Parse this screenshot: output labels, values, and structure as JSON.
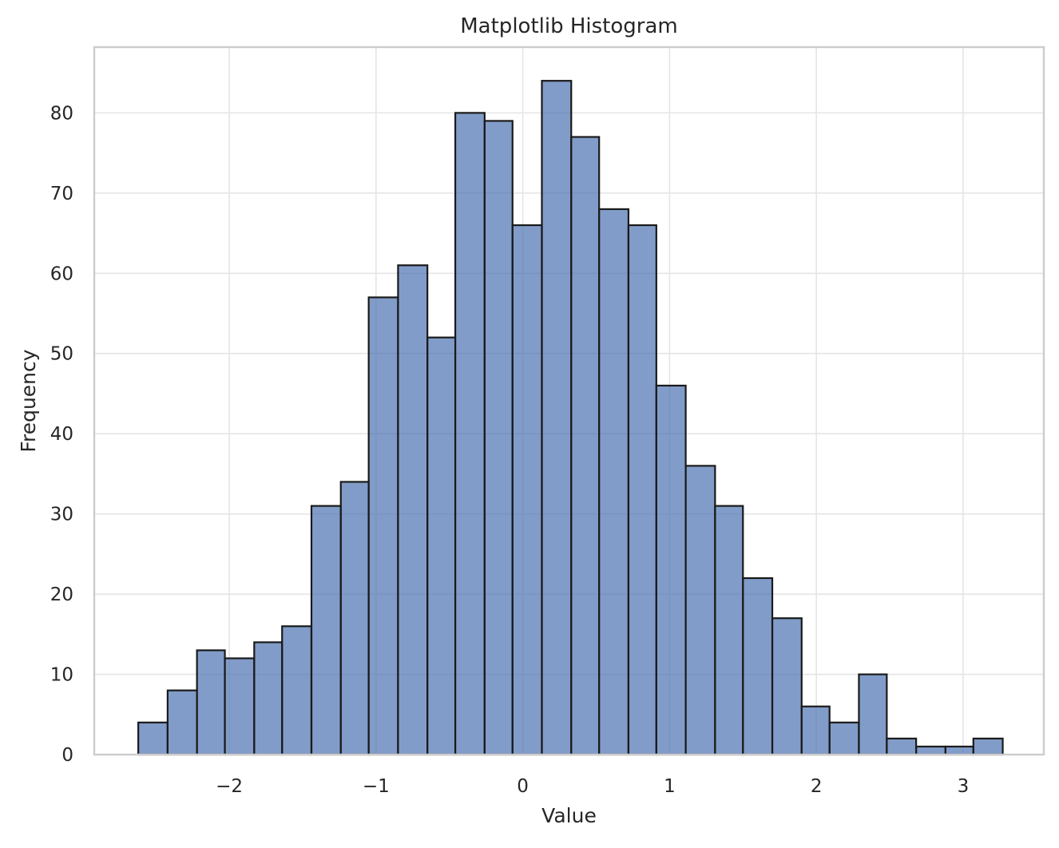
{
  "chart_data": {
    "type": "bar",
    "subtype": "histogram",
    "title": "Matplotlib Histogram",
    "xlabel": "Value",
    "ylabel": "Frequency",
    "bin_edges": [
      -2.62,
      -2.42,
      -2.22,
      -2.03,
      -1.83,
      -1.64,
      -1.44,
      -1.24,
      -1.05,
      -0.85,
      -0.65,
      -0.46,
      -0.26,
      -0.07,
      0.13,
      0.33,
      0.52,
      0.72,
      0.91,
      1.11,
      1.31,
      1.5,
      1.7,
      1.9,
      2.09,
      2.29,
      2.48,
      2.68,
      2.88,
      3.07,
      3.27
    ],
    "values": [
      4,
      8,
      13,
      12,
      14,
      16,
      31,
      34,
      57,
      61,
      52,
      80,
      79,
      66,
      84,
      77,
      68,
      66,
      46,
      36,
      31,
      22,
      17,
      6,
      4,
      10,
      2,
      1,
      1,
      2
    ],
    "xlim": [
      -2.92,
      3.55
    ],
    "ylim": [
      0,
      88.2
    ],
    "xticks": [
      -2,
      -1,
      0,
      1,
      2,
      3
    ],
    "xtick_labels": [
      "−2",
      "−1",
      "0",
      "1",
      "2",
      "3"
    ],
    "yticks": [
      0,
      10,
      20,
      30,
      40,
      50,
      60,
      70,
      80
    ],
    "ytick_labels": [
      "0",
      "10",
      "20",
      "30",
      "40",
      "50",
      "60",
      "70",
      "80"
    ],
    "grid": true,
    "bar_color": "#4c72b0",
    "edge_color": "#1a1a1a"
  }
}
